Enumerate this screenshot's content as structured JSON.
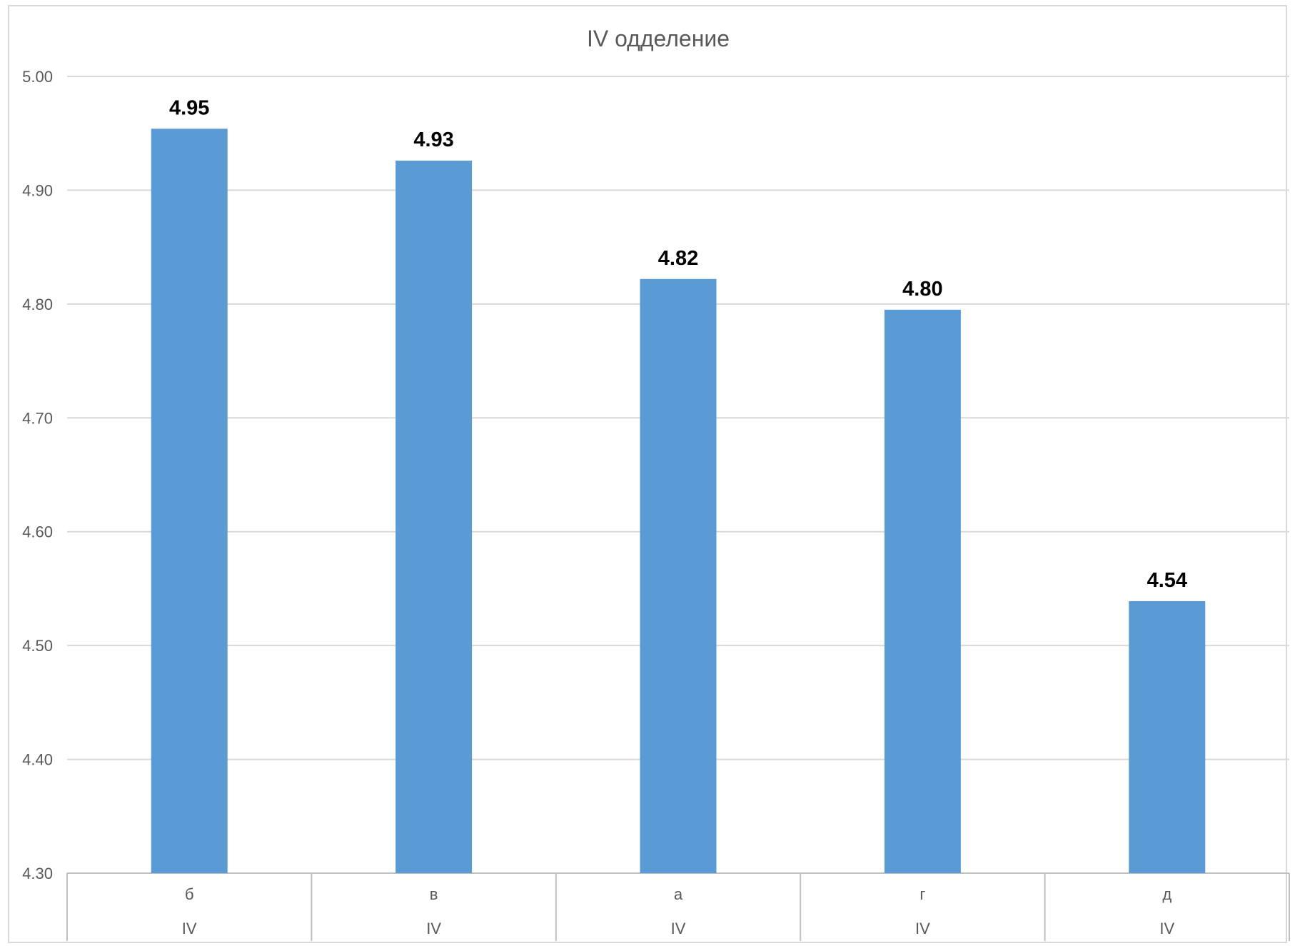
{
  "chart_data": {
    "type": "bar",
    "title": "IV одделение",
    "xlabel": "",
    "ylabel": "",
    "ylim": [
      4.3,
      5.0
    ],
    "y_ticks": [
      "5.00",
      "4.90",
      "4.80",
      "4.70",
      "4.60",
      "4.50",
      "4.40",
      "4.30"
    ],
    "y_tick_values": [
      5.0,
      4.9,
      4.8,
      4.7,
      4.6,
      4.5,
      4.4,
      4.3
    ],
    "categories": [
      "б",
      "в",
      "а",
      "г",
      "д"
    ],
    "group_labels": [
      "IV",
      "IV",
      "IV",
      "IV",
      "IV"
    ],
    "values": [
      4.954,
      4.926,
      4.822,
      4.795,
      4.539
    ],
    "data_labels": [
      "4.95",
      "4.93",
      "4.82",
      "4.80",
      "4.54"
    ],
    "grid": true,
    "legend": "none",
    "bar_color": "#5B9BD5",
    "gridline_color": "#D9D9D9",
    "axis_text_color": "#595959"
  }
}
